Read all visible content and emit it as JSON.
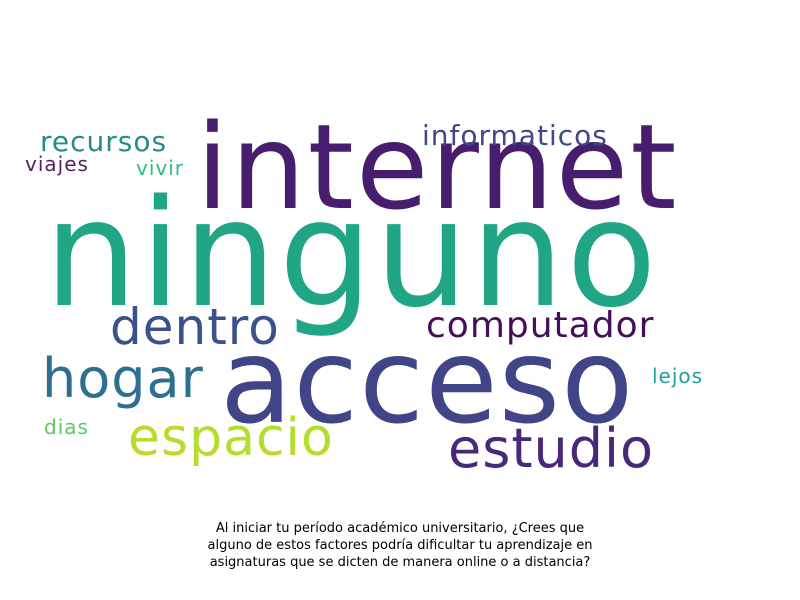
{
  "wordcloud": {
    "words": [
      {
        "id": "ninguno",
        "text": "ninguno",
        "color": "#21a685"
      },
      {
        "id": "internet",
        "text": "internet",
        "color": "#471d6e"
      },
      {
        "id": "acceso",
        "text": "acceso",
        "color": "#414487"
      },
      {
        "id": "dentro",
        "text": "dentro",
        "color": "#3b518b"
      },
      {
        "id": "hogar",
        "text": "hogar",
        "color": "#2d6f8e"
      },
      {
        "id": "espacio",
        "text": "espacio",
        "color": "#b5de2b"
      },
      {
        "id": "estudio",
        "text": "estudio",
        "color": "#482878"
      },
      {
        "id": "computador",
        "text": "computador",
        "color": "#450e5a"
      },
      {
        "id": "informaticos",
        "text": "informaticos",
        "color": "#404988"
      },
      {
        "id": "recursos",
        "text": "recursos",
        "color": "#2a8a8a"
      },
      {
        "id": "viajes",
        "text": "viajes",
        "color": "#56225e"
      },
      {
        "id": "vivir",
        "text": "vivir",
        "color": "#37b77f"
      },
      {
        "id": "lejos",
        "text": "lejos",
        "color": "#21a0a0"
      },
      {
        "id": "dias",
        "text": "dias",
        "color": "#5ac864"
      }
    ]
  },
  "caption": {
    "line1": "Al iniciar tu período académico universitario, ¿Crees que",
    "line2": "alguno de estos factores podría dificultar tu aprendizaje en",
    "line3": "asignaturas que se dicten de manera online o a distancia?"
  }
}
